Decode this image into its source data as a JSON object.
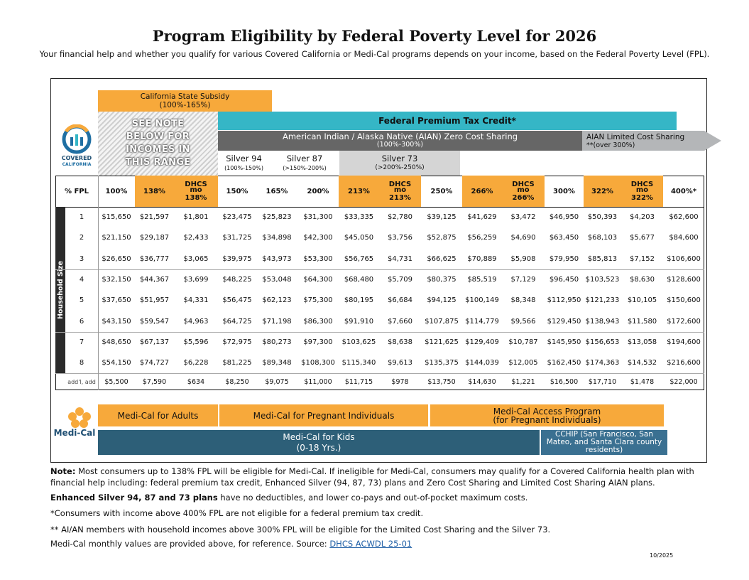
{
  "header": {
    "title": "Program Eligibility by Federal Poverty Level for 2026",
    "subtitle": "Your financial help and whether you qualify for various Covered California or Medi-Cal programs depends on your income, based on the Federal Poverty Level (FPL)."
  },
  "bands": {
    "state_subsidy": {
      "name": "California State Subsidy",
      "range": "(100%-165%)"
    },
    "see_note": "SEE NOTE BELOW FOR INCOMES IN THIS RANGE",
    "ptc": "Federal Premium Tax Credit*",
    "aian": {
      "name": "American Indian / Alaska Native (AIAN) Zero Cost Sharing",
      "range": "(100%-300%)"
    },
    "aian_limited": {
      "name": "AIAN Limited Cost Sharing",
      "range": "**(over 300%)"
    },
    "silver": [
      {
        "name": "Silver 94",
        "range": "(100%-150%)"
      },
      {
        "name": "Silver 87",
        "range": "(>150%-200%)"
      },
      {
        "name": "Silver 73",
        "range": "(>200%-250%)"
      }
    ]
  },
  "logo": {
    "line1": "COVERED",
    "line2": "CALIFORNIA"
  },
  "table": {
    "fpl_label": "% FPL",
    "side_label": "Household Size",
    "columns": [
      [
        "100%"
      ],
      [
        "138%"
      ],
      [
        "DHCS",
        "mo",
        "138%"
      ],
      [
        "150%"
      ],
      [
        "165%"
      ],
      [
        "200%"
      ],
      [
        "213%"
      ],
      [
        "DHCS",
        "mo",
        "213%"
      ],
      [
        "250%"
      ],
      [
        "266%"
      ],
      [
        "DHCS",
        "mo",
        "266%"
      ],
      [
        "300%"
      ],
      [
        "322%"
      ],
      [
        "DHCS",
        "mo",
        "322%"
      ],
      [
        "400%*"
      ]
    ],
    "rows": [
      {
        "size": "1",
        "values": [
          "$15,650",
          "$21,597",
          "$1,801",
          "$23,475",
          "$25,823",
          "$31,300",
          "$33,335",
          "$2,780",
          "$39,125",
          "$41,629",
          "$3,472",
          "$46,950",
          "$50,393",
          "$4,203",
          "$62,600"
        ]
      },
      {
        "size": "2",
        "values": [
          "$21,150",
          "$29,187",
          "$2,433",
          "$31,725",
          "$34,898",
          "$42,300",
          "$45,050",
          "$3,756",
          "$52,875",
          "$56,259",
          "$4,690",
          "$63,450",
          "$68,103",
          "$5,677",
          "$84,600"
        ]
      },
      {
        "size": "3",
        "values": [
          "$26,650",
          "$36,777",
          "$3,065",
          "$39,975",
          "$43,973",
          "$53,300",
          "$56,765",
          "$4,731",
          "$66,625",
          "$70,889",
          "$5,908",
          "$79,950",
          "$85,813",
          "$7,152",
          "$106,600"
        ]
      },
      {
        "size": "4",
        "values": [
          "$32,150",
          "$44,367",
          "$3,699",
          "$48,225",
          "$53,048",
          "$64,300",
          "$68,480",
          "$5,709",
          "$80,375",
          "$85,519",
          "$7,129",
          "$96,450",
          "$103,523",
          "$8,630",
          "$128,600"
        ]
      },
      {
        "size": "5",
        "values": [
          "$37,650",
          "$51,957",
          "$4,331",
          "$56,475",
          "$62,123",
          "$75,300",
          "$80,195",
          "$6,684",
          "$94,125",
          "$100,149",
          "$8,348",
          "$112,950",
          "$121,233",
          "$10,105",
          "$150,600"
        ]
      },
      {
        "size": "6",
        "values": [
          "$43,150",
          "$59,547",
          "$4,963",
          "$64,725",
          "$71,198",
          "$86,300",
          "$91,910",
          "$7,660",
          "$107,875",
          "$114,779",
          "$9,566",
          "$129,450",
          "$138,943",
          "$11,580",
          "$172,600"
        ]
      },
      {
        "size": "7",
        "values": [
          "$48,650",
          "$67,137",
          "$5,596",
          "$72,975",
          "$80,273",
          "$97,300",
          "$103,625",
          "$8,638",
          "$121,625",
          "$129,409",
          "$10,787",
          "$145,950",
          "$156,653",
          "$13,058",
          "$194,600"
        ]
      },
      {
        "size": "8",
        "values": [
          "$54,150",
          "$74,727",
          "$6,228",
          "$81,225",
          "$89,348",
          "$108,300",
          "$115,340",
          "$9,613",
          "$135,375",
          "$144,039",
          "$12,005",
          "$162,450",
          "$174,363",
          "$14,532",
          "$216,600"
        ]
      },
      {
        "size": "add'l, add",
        "values": [
          "$5,500",
          "$7,590",
          "$634",
          "$8,250",
          "$9,075",
          "$11,000",
          "$11,715",
          "$978",
          "$13,750",
          "$14,630",
          "$1,221",
          "$16,500",
          "$17,710",
          "$1,478",
          "$22,000"
        ]
      }
    ]
  },
  "medi_cal": {
    "logo": "Medi-Cal",
    "adults": "Medi-Cal for Adults",
    "pregnant": "Medi-Cal for Pregnant Individuals",
    "access": {
      "name": "Medi-Cal Access Program",
      "sub": "(for Pregnant Individuals)"
    },
    "kids": {
      "name": "Medi-Cal for Kids",
      "sub": "(0-18 Yrs.)"
    },
    "cchip": "CCHIP (San Francisco, San Mateo, and Santa Clara county residents)"
  },
  "notes": {
    "note": {
      "label": "Note:",
      "text": "Most consumers up to 138% FPL will be eligible for Medi-Cal. If ineligible for Medi-Cal, consumers may qualify for a Covered California health plan with financial help including: federal premium tax credit, Enhanced Silver (94, 87, 73) plans and Zero Cost Sharing and Limited Cost Sharing AIAN plans."
    },
    "enhanced": {
      "label": "Enhanced Silver 94, 87 and 73 plans",
      "text": "have no deductibles, and lower co-pays and out-of-pocket maximum costs."
    },
    "above400": "*Consumers with income above 400% FPL are not eligible for a federal premium tax credit.",
    "aian": "** AI/AN members with household incomes above 300% FPL will be eligible for the Limited Cost Sharing and the Silver 73.",
    "source": {
      "text": "Medi-Cal monthly values are provided above, for reference. Source:",
      "link": "DHCS ACWDL 25-01"
    }
  },
  "date": "10/2025"
}
